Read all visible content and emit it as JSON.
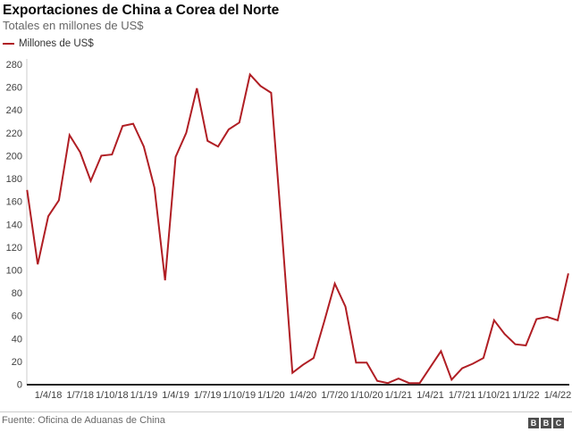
{
  "title": "Exportaciones de China a Corea del Norte",
  "subtitle": "Totales en millones de US$",
  "legend": {
    "label": "Millones de US$"
  },
  "source": "Fuente: Oficina de Aduanas de China",
  "logo": {
    "letters": [
      "B",
      "B",
      "C"
    ]
  },
  "chart_data": {
    "type": "line",
    "title": "Exportaciones de China a Corea del Norte",
    "subtitle": "Totales en millones de US$",
    "series_name": "Millones de US$",
    "line_color": "#b01e24",
    "grid": false,
    "legend_position": "top-left",
    "ylim": [
      0,
      280
    ],
    "yticks": [
      0,
      20,
      40,
      60,
      80,
      100,
      120,
      140,
      160,
      180,
      200,
      220,
      240,
      260,
      280
    ],
    "x": [
      "1/2/18",
      "1/3/18",
      "1/4/18",
      "1/5/18",
      "1/6/18",
      "1/7/18",
      "1/8/18",
      "1/9/18",
      "1/10/18",
      "1/11/18",
      "1/12/18",
      "1/1/19",
      "1/2/19",
      "1/3/19",
      "1/4/19",
      "1/5/19",
      "1/6/19",
      "1/7/19",
      "1/8/19",
      "1/9/19",
      "1/10/19",
      "1/11/19",
      "1/12/19",
      "1/1/20",
      "1/2/20",
      "1/3/20",
      "1/4/20",
      "1/5/20",
      "1/6/20",
      "1/7/20",
      "1/8/20",
      "1/9/20",
      "1/10/20",
      "1/11/20",
      "1/12/20",
      "1/1/21",
      "1/2/21",
      "1/3/21",
      "1/4/21",
      "1/5/21",
      "1/6/21",
      "1/7/21",
      "1/8/21",
      "1/9/21",
      "1/10/21",
      "1/11/21",
      "1/12/21",
      "1/1/22",
      "1/2/22",
      "1/3/22",
      "1/4/22",
      "1/5/22"
    ],
    "values": [
      170,
      105,
      147,
      161,
      218,
      203,
      178,
      200,
      201,
      226,
      228,
      208,
      172,
      91,
      199,
      220,
      259,
      213,
      208,
      223,
      229,
      271,
      261,
      255,
      135,
      10,
      17,
      23,
      55,
      88,
      68,
      19,
      19,
      3,
      1,
      5,
      1,
      1,
      15,
      29,
      4,
      14,
      18,
      23,
      56,
      44,
      35,
      34,
      57,
      59,
      56,
      97
    ],
    "xtick_labels": [
      "1/4/18",
      "1/7/18",
      "1/10/18",
      "1/1/19",
      "1/4/19",
      "1/7/19",
      "1/10/19",
      "1/1/20",
      "1/4/20",
      "1/7/20",
      "1/10/20",
      "1/1/21",
      "1/4/21",
      "1/7/21",
      "1/10/21",
      "1/1/22",
      "1/4/22"
    ],
    "xtick_indices": [
      2,
      5,
      8,
      11,
      14,
      17,
      20,
      23,
      26,
      29,
      32,
      35,
      38,
      41,
      44,
      47,
      50
    ]
  }
}
